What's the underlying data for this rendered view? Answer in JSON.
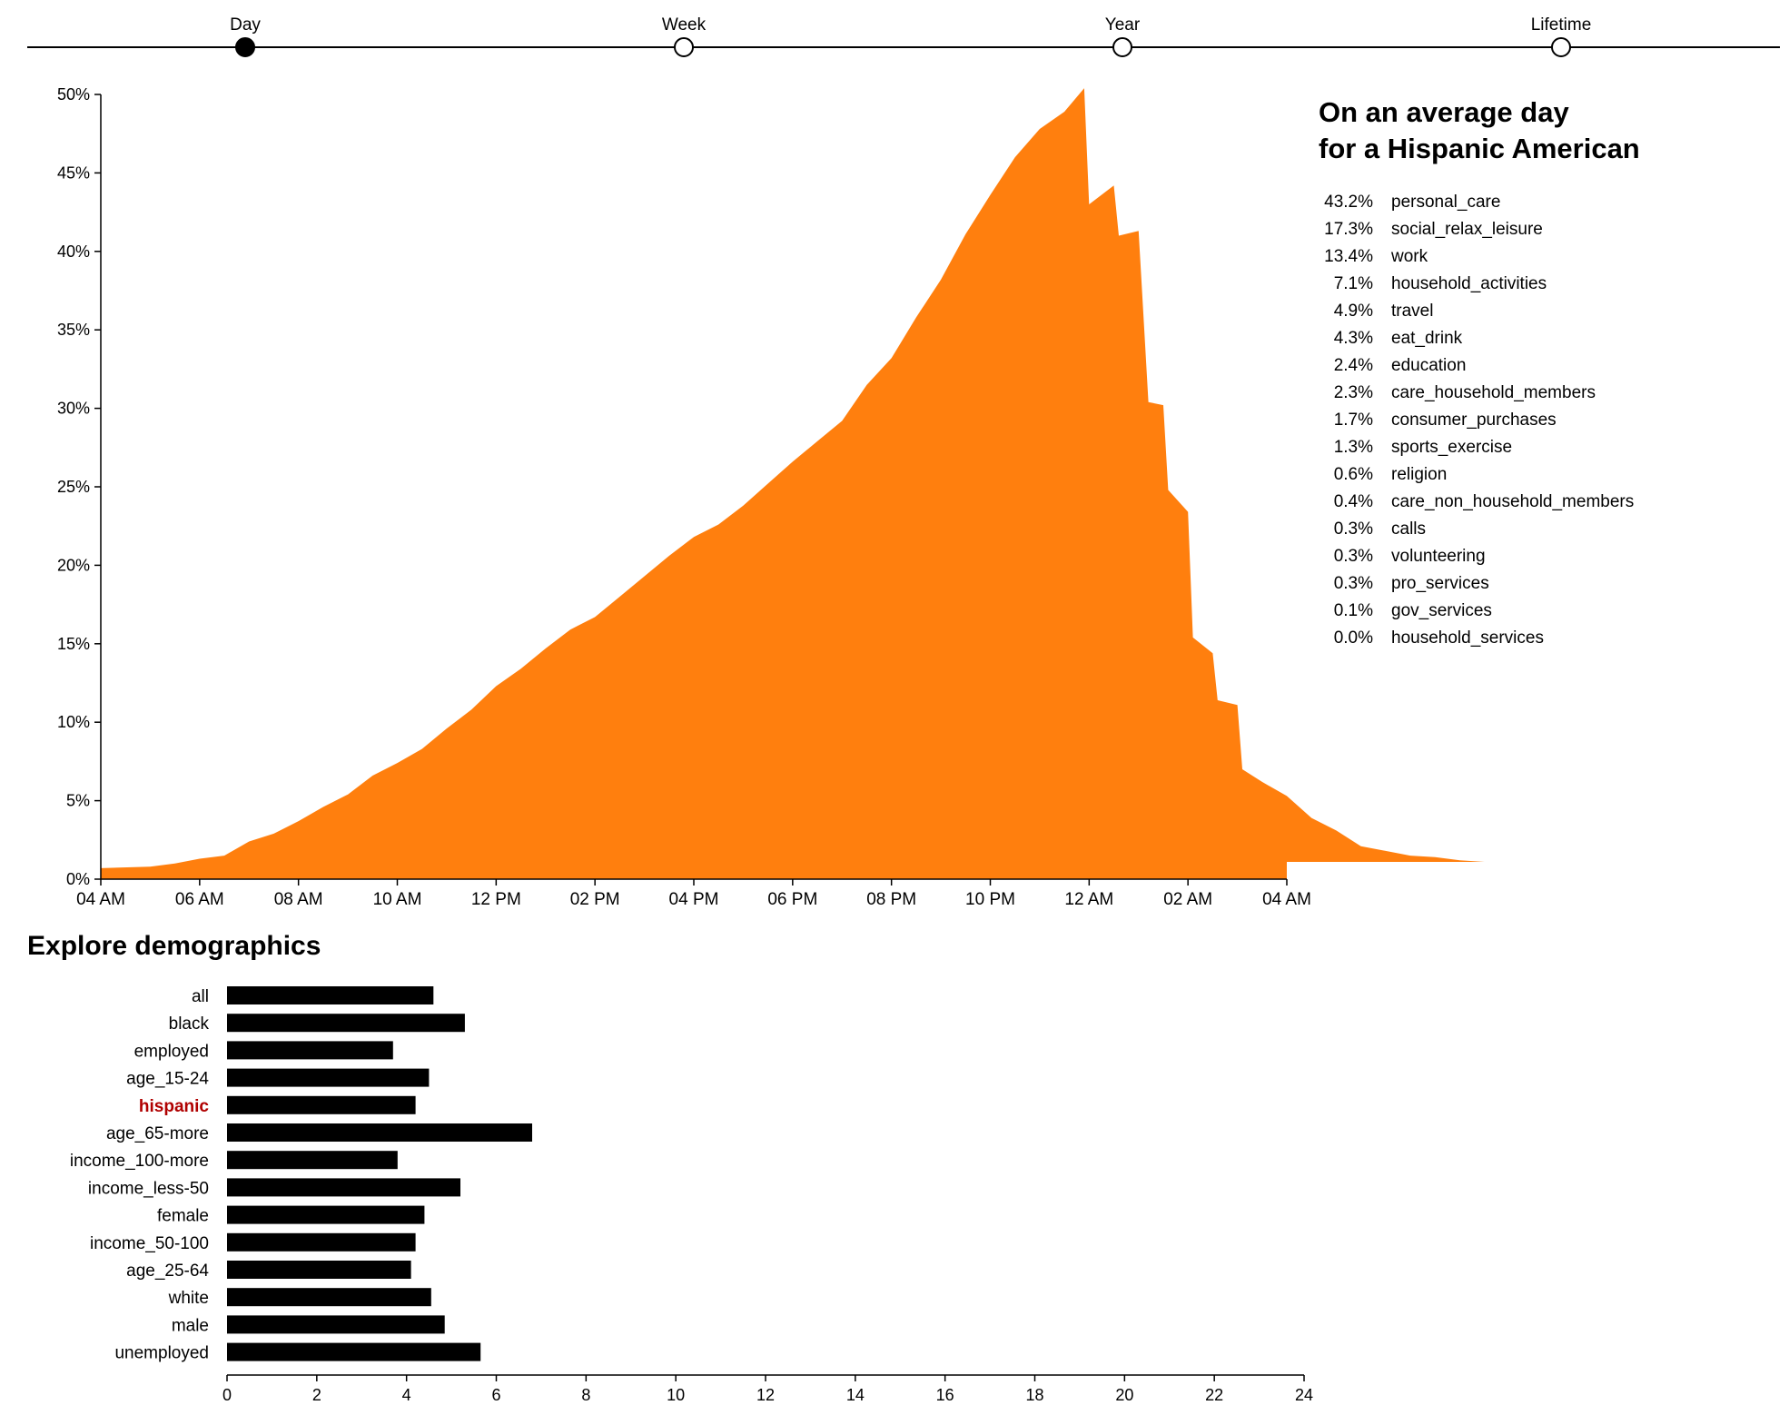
{
  "timescale": {
    "options": [
      "Day",
      "Week",
      "Year",
      "Lifetime"
    ],
    "selected": "Day"
  },
  "summary": {
    "title_line1": "On an average day",
    "title_line2": "for a Hispanic American",
    "activities": [
      {
        "pct": "43.2%",
        "name": "personal_care"
      },
      {
        "pct": "17.3%",
        "name": "social_relax_leisure"
      },
      {
        "pct": "13.4%",
        "name": "work"
      },
      {
        "pct": "7.1%",
        "name": "household_activities"
      },
      {
        "pct": "4.9%",
        "name": "travel"
      },
      {
        "pct": "4.3%",
        "name": "eat_drink"
      },
      {
        "pct": "2.4%",
        "name": "education"
      },
      {
        "pct": "2.3%",
        "name": "care_household_members"
      },
      {
        "pct": "1.7%",
        "name": "consumer_purchases"
      },
      {
        "pct": "1.3%",
        "name": "sports_exercise"
      },
      {
        "pct": "0.6%",
        "name": "religion"
      },
      {
        "pct": "0.4%",
        "name": "care_non_household_members"
      },
      {
        "pct": "0.3%",
        "name": "calls"
      },
      {
        "pct": "0.3%",
        "name": "volunteering"
      },
      {
        "pct": "0.3%",
        "name": "pro_services"
      },
      {
        "pct": "0.1%",
        "name": "gov_services"
      },
      {
        "pct": "0.0%",
        "name": "household_services"
      }
    ]
  },
  "demographics": {
    "title": "Explore demographics",
    "selected": "hispanic",
    "highlight_color": "#b00000"
  },
  "chart_data": [
    {
      "type": "area",
      "color": "#ff7f0e",
      "x_tick_labels": [
        "04 AM",
        "06 AM",
        "08 AM",
        "10 AM",
        "12 PM",
        "02 PM",
        "04 PM",
        "06 PM",
        "08 PM",
        "10 PM",
        "12 AM",
        "02 AM",
        "04 AM"
      ],
      "y_tick_labels": [
        "0%",
        "5%",
        "10%",
        "15%",
        "20%",
        "25%",
        "30%",
        "35%",
        "40%",
        "45%",
        "50%"
      ],
      "xlim_hours": [
        0,
        24
      ],
      "ylim": [
        0,
        50
      ],
      "points": [
        [
          0,
          0.7
        ],
        [
          1,
          0.8
        ],
        [
          1.5,
          1.0
        ],
        [
          2,
          1.3
        ],
        [
          2.5,
          1.5
        ],
        [
          3,
          2.4
        ],
        [
          3.5,
          2.9
        ],
        [
          4,
          3.7
        ],
        [
          4.5,
          4.6
        ],
        [
          5,
          5.4
        ],
        [
          5.5,
          6.6
        ],
        [
          6,
          7.4
        ],
        [
          6.5,
          8.3
        ],
        [
          7,
          9.6
        ],
        [
          7.5,
          10.8
        ],
        [
          8,
          12.3
        ],
        [
          8.5,
          13.4
        ],
        [
          9,
          14.7
        ],
        [
          9.5,
          15.9
        ],
        [
          10,
          16.7
        ],
        [
          10.5,
          18.0
        ],
        [
          11,
          19.3
        ],
        [
          11.5,
          20.6
        ],
        [
          12,
          21.8
        ],
        [
          12.5,
          22.6
        ],
        [
          13,
          23.8
        ],
        [
          13.5,
          25.2
        ],
        [
          14,
          26.6
        ],
        [
          14.5,
          27.9
        ],
        [
          15,
          29.2
        ],
        [
          15.5,
          31.5
        ],
        [
          16,
          33.2
        ],
        [
          16.5,
          35.8
        ],
        [
          17,
          38.2
        ],
        [
          17.5,
          41.1
        ],
        [
          18,
          43.6
        ],
        [
          18.5,
          46.0
        ],
        [
          19,
          47.8
        ],
        [
          19.5,
          48.9
        ],
        [
          19.9,
          50.4
        ],
        [
          20,
          43.0
        ],
        [
          20.5,
          44.2
        ],
        [
          20.6,
          41.0
        ],
        [
          21,
          41.3
        ],
        [
          21.2,
          30.4
        ],
        [
          21.5,
          30.2
        ],
        [
          21.6,
          24.8
        ],
        [
          22,
          23.4
        ],
        [
          22.1,
          15.4
        ],
        [
          22.5,
          14.4
        ],
        [
          22.6,
          11.4
        ],
        [
          23,
          11.1
        ],
        [
          23.1,
          7.0
        ],
        [
          23.5,
          6.2
        ],
        [
          24,
          5.3
        ],
        [
          24.5,
          3.9
        ],
        [
          25,
          3.1
        ],
        [
          25.5,
          2.1
        ],
        [
          26,
          1.8
        ],
        [
          26.5,
          1.5
        ],
        [
          27,
          1.4
        ],
        [
          27.5,
          1.2
        ],
        [
          28,
          1.1
        ]
      ]
    },
    {
      "type": "bar",
      "orientation": "horizontal",
      "categories": [
        "all",
        "black",
        "employed",
        "age_15-24",
        "hispanic",
        "age_65-more",
        "income_100-more",
        "income_less-50",
        "female",
        "income_50-100",
        "age_25-64",
        "white",
        "male",
        "unemployed"
      ],
      "values": [
        4.6,
        5.3,
        3.7,
        4.5,
        4.2,
        6.8,
        3.8,
        5.2,
        4.4,
        4.2,
        4.1,
        4.55,
        4.85,
        5.65
      ],
      "xlim": [
        0,
        24
      ],
      "x_tick_labels": [
        "0",
        "2",
        "4",
        "6",
        "8",
        "10",
        "12",
        "14",
        "16",
        "18",
        "20",
        "22",
        "24"
      ],
      "bar_color": "#000000"
    }
  ]
}
